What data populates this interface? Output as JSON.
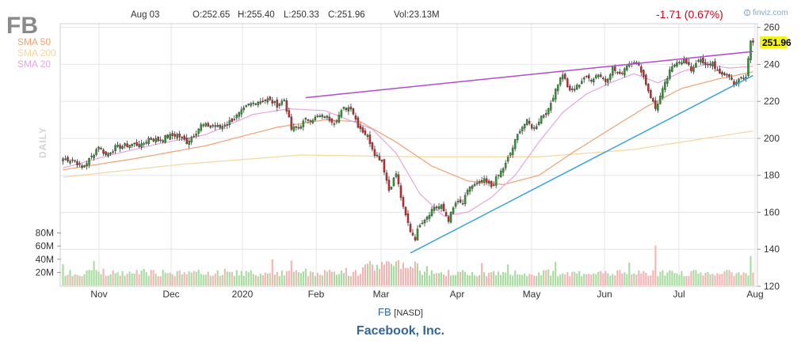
{
  "header": {
    "ticker": "FB",
    "date": "Aug 03",
    "open": "O:252.65",
    "high": "H:255.40",
    "low": "L:250.33",
    "close": "C:251.96",
    "volume": "Vol:23.13M",
    "change": "-1.71 (0.67%)",
    "brand": "finviz.com",
    "brand_icon": "finviz-logo-icon"
  },
  "legend": [
    {
      "label": "SMA 50",
      "color": "#f0a070"
    },
    {
      "label": "SMA 200",
      "color": "#f5d59a"
    },
    {
      "label": "SMA 20",
      "color": "#e8a4dc"
    }
  ],
  "side_label": "DAILY",
  "last_price_label": "251.96",
  "footer": {
    "symbol": "FB",
    "exchange": "[NASD]",
    "company": "Facebook, Inc."
  },
  "colors": {
    "up": "#2ca02c",
    "down": "#d62728",
    "volume_up": "#a8dba0",
    "volume_down": "#f4b4b4",
    "trendline_upper": "#b04cc8",
    "trendline_lower": "#3aa3d8",
    "last_price_box": "#f5f515",
    "change": "#d0021b"
  },
  "chart_data": {
    "type": "candlestick",
    "title": "FB",
    "y_axis_ticks": [
      "120",
      "140",
      "160",
      "180",
      "200",
      "220",
      "240",
      "260"
    ],
    "ylim": [
      120,
      262
    ],
    "x_axis_labels": [
      "Nov",
      "Dec",
      "2020",
      "Feb",
      "Mar",
      "Apr",
      "May",
      "Jun",
      "Jul",
      "Aug"
    ],
    "volume_axis_ticks": [
      "20M",
      "40M",
      "60M",
      "80M"
    ],
    "volume_ylim": [
      0,
      100
    ],
    "price_anchors": [
      {
        "i": 0,
        "c": 189
      },
      {
        "i": 5,
        "c": 188
      },
      {
        "i": 8,
        "c": 184
      },
      {
        "i": 12,
        "c": 190
      },
      {
        "i": 15,
        "c": 196
      },
      {
        "i": 18,
        "c": 191
      },
      {
        "i": 22,
        "c": 195
      },
      {
        "i": 26,
        "c": 196
      },
      {
        "i": 30,
        "c": 197
      },
      {
        "i": 33,
        "c": 196
      },
      {
        "i": 36,
        "c": 200
      },
      {
        "i": 40,
        "c": 199
      },
      {
        "i": 44,
        "c": 201
      },
      {
        "i": 48,
        "c": 202
      },
      {
        "i": 52,
        "c": 198
      },
      {
        "i": 55,
        "c": 202
      },
      {
        "i": 58,
        "c": 207
      },
      {
        "i": 62,
        "c": 207
      },
      {
        "i": 66,
        "c": 206
      },
      {
        "i": 70,
        "c": 209
      },
      {
        "i": 74,
        "c": 213
      },
      {
        "i": 78,
        "c": 218
      },
      {
        "i": 82,
        "c": 220
      },
      {
        "i": 86,
        "c": 221
      },
      {
        "i": 90,
        "c": 218
      },
      {
        "i": 93,
        "c": 221
      },
      {
        "i": 96,
        "c": 205
      },
      {
        "i": 99,
        "c": 206
      },
      {
        "i": 102,
        "c": 210
      },
      {
        "i": 106,
        "c": 211
      },
      {
        "i": 110,
        "c": 212
      },
      {
        "i": 114,
        "c": 209
      },
      {
        "i": 118,
        "c": 216
      },
      {
        "i": 121,
        "c": 217
      },
      {
        "i": 124,
        "c": 207
      },
      {
        "i": 128,
        "c": 201
      },
      {
        "i": 131,
        "c": 192
      },
      {
        "i": 134,
        "c": 188
      },
      {
        "i": 137,
        "c": 172
      },
      {
        "i": 140,
        "c": 181
      },
      {
        "i": 143,
        "c": 162
      },
      {
        "i": 146,
        "c": 150
      },
      {
        "i": 148,
        "c": 146
      },
      {
        "i": 150,
        "c": 154
      },
      {
        "i": 153,
        "c": 158
      },
      {
        "i": 156,
        "c": 163
      },
      {
        "i": 159,
        "c": 163
      },
      {
        "i": 162,
        "c": 156
      },
      {
        "i": 165,
        "c": 165
      },
      {
        "i": 168,
        "c": 165
      },
      {
        "i": 171,
        "c": 174
      },
      {
        "i": 174,
        "c": 175
      },
      {
        "i": 177,
        "c": 177
      },
      {
        "i": 180,
        "c": 174
      },
      {
        "i": 183,
        "c": 180
      },
      {
        "i": 186,
        "c": 186
      },
      {
        "i": 189,
        "c": 195
      },
      {
        "i": 192,
        "c": 205
      },
      {
        "i": 195,
        "c": 209
      },
      {
        "i": 198,
        "c": 205
      },
      {
        "i": 201,
        "c": 212
      },
      {
        "i": 204,
        "c": 215
      },
      {
        "i": 207,
        "c": 227
      },
      {
        "i": 210,
        "c": 235
      },
      {
        "i": 213,
        "c": 225
      },
      {
        "i": 216,
        "c": 228
      },
      {
        "i": 219,
        "c": 233
      },
      {
        "i": 222,
        "c": 232
      },
      {
        "i": 225,
        "c": 235
      },
      {
        "i": 228,
        "c": 231
      },
      {
        "i": 231,
        "c": 238
      },
      {
        "i": 234,
        "c": 234
      },
      {
        "i": 237,
        "c": 240
      },
      {
        "i": 240,
        "c": 242
      },
      {
        "i": 243,
        "c": 237
      },
      {
        "i": 246,
        "c": 226
      },
      {
        "i": 249,
        "c": 216
      },
      {
        "i": 252,
        "c": 226
      },
      {
        "i": 255,
        "c": 236
      },
      {
        "i": 258,
        "c": 242
      },
      {
        "i": 261,
        "c": 242
      },
      {
        "i": 264,
        "c": 237
      },
      {
        "i": 267,
        "c": 243
      },
      {
        "i": 270,
        "c": 239
      },
      {
        "i": 273,
        "c": 241
      },
      {
        "i": 276,
        "c": 234
      },
      {
        "i": 279,
        "c": 235
      },
      {
        "i": 282,
        "c": 230
      },
      {
        "i": 285,
        "c": 232
      },
      {
        "i": 287,
        "c": 233
      },
      {
        "i": 289,
        "c": 253
      },
      {
        "i": 290,
        "c": 252
      }
    ],
    "sma20": [
      {
        "i": 0,
        "c": 184
      },
      {
        "i": 20,
        "c": 191
      },
      {
        "i": 40,
        "c": 197
      },
      {
        "i": 60,
        "c": 202
      },
      {
        "i": 80,
        "c": 213
      },
      {
        "i": 95,
        "c": 216
      },
      {
        "i": 110,
        "c": 215
      },
      {
        "i": 120,
        "c": 210
      },
      {
        "i": 130,
        "c": 205
      },
      {
        "i": 140,
        "c": 192
      },
      {
        "i": 150,
        "c": 170
      },
      {
        "i": 160,
        "c": 158
      },
      {
        "i": 170,
        "c": 160
      },
      {
        "i": 180,
        "c": 168
      },
      {
        "i": 190,
        "c": 180
      },
      {
        "i": 200,
        "c": 198
      },
      {
        "i": 210,
        "c": 214
      },
      {
        "i": 220,
        "c": 224
      },
      {
        "i": 230,
        "c": 230
      },
      {
        "i": 240,
        "c": 235
      },
      {
        "i": 250,
        "c": 230
      },
      {
        "i": 260,
        "c": 236
      },
      {
        "i": 270,
        "c": 240
      },
      {
        "i": 280,
        "c": 238
      },
      {
        "i": 290,
        "c": 239
      }
    ],
    "sma50": [
      {
        "i": 0,
        "c": 183
      },
      {
        "i": 30,
        "c": 189
      },
      {
        "i": 60,
        "c": 196
      },
      {
        "i": 90,
        "c": 206
      },
      {
        "i": 110,
        "c": 210
      },
      {
        "i": 125,
        "c": 209
      },
      {
        "i": 140,
        "c": 198
      },
      {
        "i": 155,
        "c": 185
      },
      {
        "i": 170,
        "c": 177
      },
      {
        "i": 185,
        "c": 175
      },
      {
        "i": 200,
        "c": 180
      },
      {
        "i": 215,
        "c": 193
      },
      {
        "i": 230,
        "c": 205
      },
      {
        "i": 245,
        "c": 217
      },
      {
        "i": 260,
        "c": 227
      },
      {
        "i": 275,
        "c": 232
      },
      {
        "i": 290,
        "c": 236
      }
    ],
    "sma200": [
      {
        "i": 0,
        "c": 179
      },
      {
        "i": 50,
        "c": 186
      },
      {
        "i": 100,
        "c": 191
      },
      {
        "i": 150,
        "c": 190
      },
      {
        "i": 200,
        "c": 190
      },
      {
        "i": 240,
        "c": 194
      },
      {
        "i": 270,
        "c": 200
      },
      {
        "i": 290,
        "c": 204
      }
    ],
    "upper_trendline": [
      {
        "i": 102,
        "c": 222
      },
      {
        "i": 290,
        "c": 247
      }
    ],
    "lower_trendline": [
      {
        "i": 146,
        "c": 138
      },
      {
        "i": 290,
        "c": 234
      }
    ]
  }
}
